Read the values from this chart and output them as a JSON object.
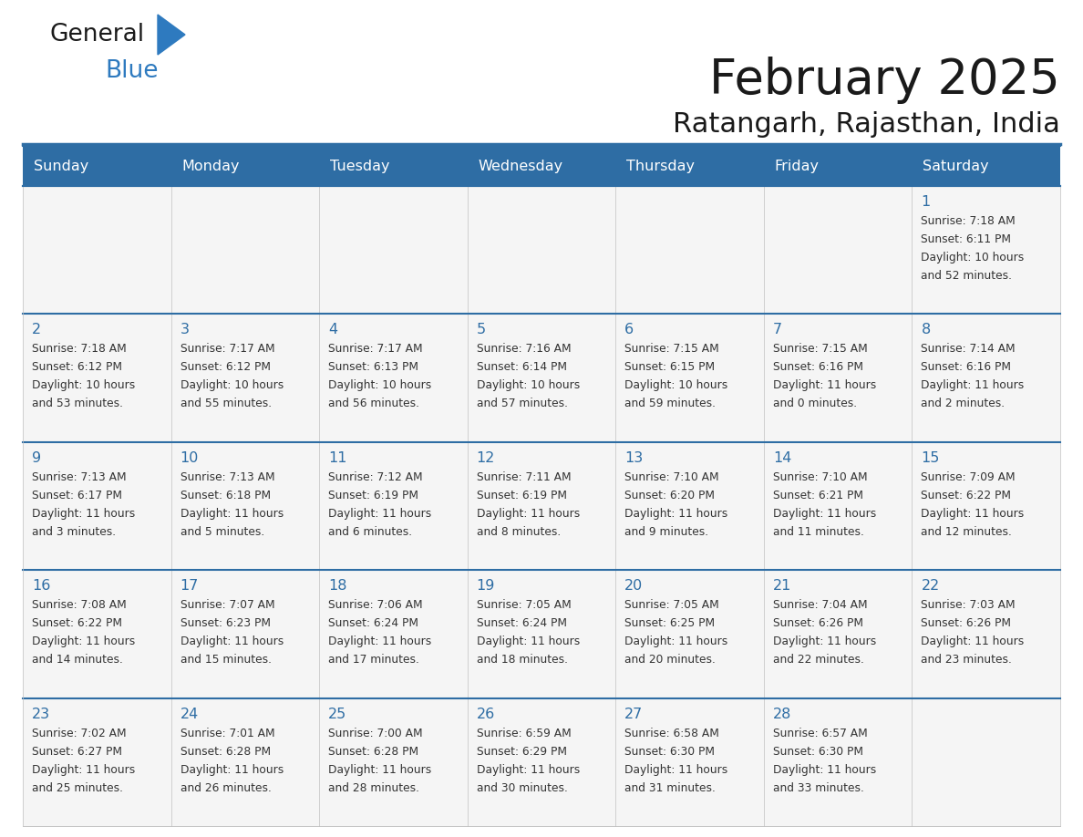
{
  "title": "February 2025",
  "subtitle": "Ratangarh, Rajasthan, India",
  "header_bg": "#2E6DA4",
  "header_text": "#FFFFFF",
  "cell_bg": "#F5F5F5",
  "day_headers": [
    "Sunday",
    "Monday",
    "Tuesday",
    "Wednesday",
    "Thursday",
    "Friday",
    "Saturday"
  ],
  "calendar": [
    [
      null,
      null,
      null,
      null,
      null,
      null,
      {
        "day": 1,
        "sunrise": "7:18 AM",
        "sunset": "6:11 PM",
        "daylight1": "10 hours",
        "daylight2": "and 52 minutes."
      }
    ],
    [
      {
        "day": 2,
        "sunrise": "7:18 AM",
        "sunset": "6:12 PM",
        "daylight1": "10 hours",
        "daylight2": "and 53 minutes."
      },
      {
        "day": 3,
        "sunrise": "7:17 AM",
        "sunset": "6:12 PM",
        "daylight1": "10 hours",
        "daylight2": "and 55 minutes."
      },
      {
        "day": 4,
        "sunrise": "7:17 AM",
        "sunset": "6:13 PM",
        "daylight1": "10 hours",
        "daylight2": "and 56 minutes."
      },
      {
        "day": 5,
        "sunrise": "7:16 AM",
        "sunset": "6:14 PM",
        "daylight1": "10 hours",
        "daylight2": "and 57 minutes."
      },
      {
        "day": 6,
        "sunrise": "7:15 AM",
        "sunset": "6:15 PM",
        "daylight1": "10 hours",
        "daylight2": "and 59 minutes."
      },
      {
        "day": 7,
        "sunrise": "7:15 AM",
        "sunset": "6:16 PM",
        "daylight1": "11 hours",
        "daylight2": "and 0 minutes."
      },
      {
        "day": 8,
        "sunrise": "7:14 AM",
        "sunset": "6:16 PM",
        "daylight1": "11 hours",
        "daylight2": "and 2 minutes."
      }
    ],
    [
      {
        "day": 9,
        "sunrise": "7:13 AM",
        "sunset": "6:17 PM",
        "daylight1": "11 hours",
        "daylight2": "and 3 minutes."
      },
      {
        "day": 10,
        "sunrise": "7:13 AM",
        "sunset": "6:18 PM",
        "daylight1": "11 hours",
        "daylight2": "and 5 minutes."
      },
      {
        "day": 11,
        "sunrise": "7:12 AM",
        "sunset": "6:19 PM",
        "daylight1": "11 hours",
        "daylight2": "and 6 minutes."
      },
      {
        "day": 12,
        "sunrise": "7:11 AM",
        "sunset": "6:19 PM",
        "daylight1": "11 hours",
        "daylight2": "and 8 minutes."
      },
      {
        "day": 13,
        "sunrise": "7:10 AM",
        "sunset": "6:20 PM",
        "daylight1": "11 hours",
        "daylight2": "and 9 minutes."
      },
      {
        "day": 14,
        "sunrise": "7:10 AM",
        "sunset": "6:21 PM",
        "daylight1": "11 hours",
        "daylight2": "and 11 minutes."
      },
      {
        "day": 15,
        "sunrise": "7:09 AM",
        "sunset": "6:22 PM",
        "daylight1": "11 hours",
        "daylight2": "and 12 minutes."
      }
    ],
    [
      {
        "day": 16,
        "sunrise": "7:08 AM",
        "sunset": "6:22 PM",
        "daylight1": "11 hours",
        "daylight2": "and 14 minutes."
      },
      {
        "day": 17,
        "sunrise": "7:07 AM",
        "sunset": "6:23 PM",
        "daylight1": "11 hours",
        "daylight2": "and 15 minutes."
      },
      {
        "day": 18,
        "sunrise": "7:06 AM",
        "sunset": "6:24 PM",
        "daylight1": "11 hours",
        "daylight2": "and 17 minutes."
      },
      {
        "day": 19,
        "sunrise": "7:05 AM",
        "sunset": "6:24 PM",
        "daylight1": "11 hours",
        "daylight2": "and 18 minutes."
      },
      {
        "day": 20,
        "sunrise": "7:05 AM",
        "sunset": "6:25 PM",
        "daylight1": "11 hours",
        "daylight2": "and 20 minutes."
      },
      {
        "day": 21,
        "sunrise": "7:04 AM",
        "sunset": "6:26 PM",
        "daylight1": "11 hours",
        "daylight2": "and 22 minutes."
      },
      {
        "day": 22,
        "sunrise": "7:03 AM",
        "sunset": "6:26 PM",
        "daylight1": "11 hours",
        "daylight2": "and 23 minutes."
      }
    ],
    [
      {
        "day": 23,
        "sunrise": "7:02 AM",
        "sunset": "6:27 PM",
        "daylight1": "11 hours",
        "daylight2": "and 25 minutes."
      },
      {
        "day": 24,
        "sunrise": "7:01 AM",
        "sunset": "6:28 PM",
        "daylight1": "11 hours",
        "daylight2": "and 26 minutes."
      },
      {
        "day": 25,
        "sunrise": "7:00 AM",
        "sunset": "6:28 PM",
        "daylight1": "11 hours",
        "daylight2": "and 28 minutes."
      },
      {
        "day": 26,
        "sunrise": "6:59 AM",
        "sunset": "6:29 PM",
        "daylight1": "11 hours",
        "daylight2": "and 30 minutes."
      },
      {
        "day": 27,
        "sunrise": "6:58 AM",
        "sunset": "6:30 PM",
        "daylight1": "11 hours",
        "daylight2": "and 31 minutes."
      },
      {
        "day": 28,
        "sunrise": "6:57 AM",
        "sunset": "6:30 PM",
        "daylight1": "11 hours",
        "daylight2": "and 33 minutes."
      },
      null
    ]
  ]
}
